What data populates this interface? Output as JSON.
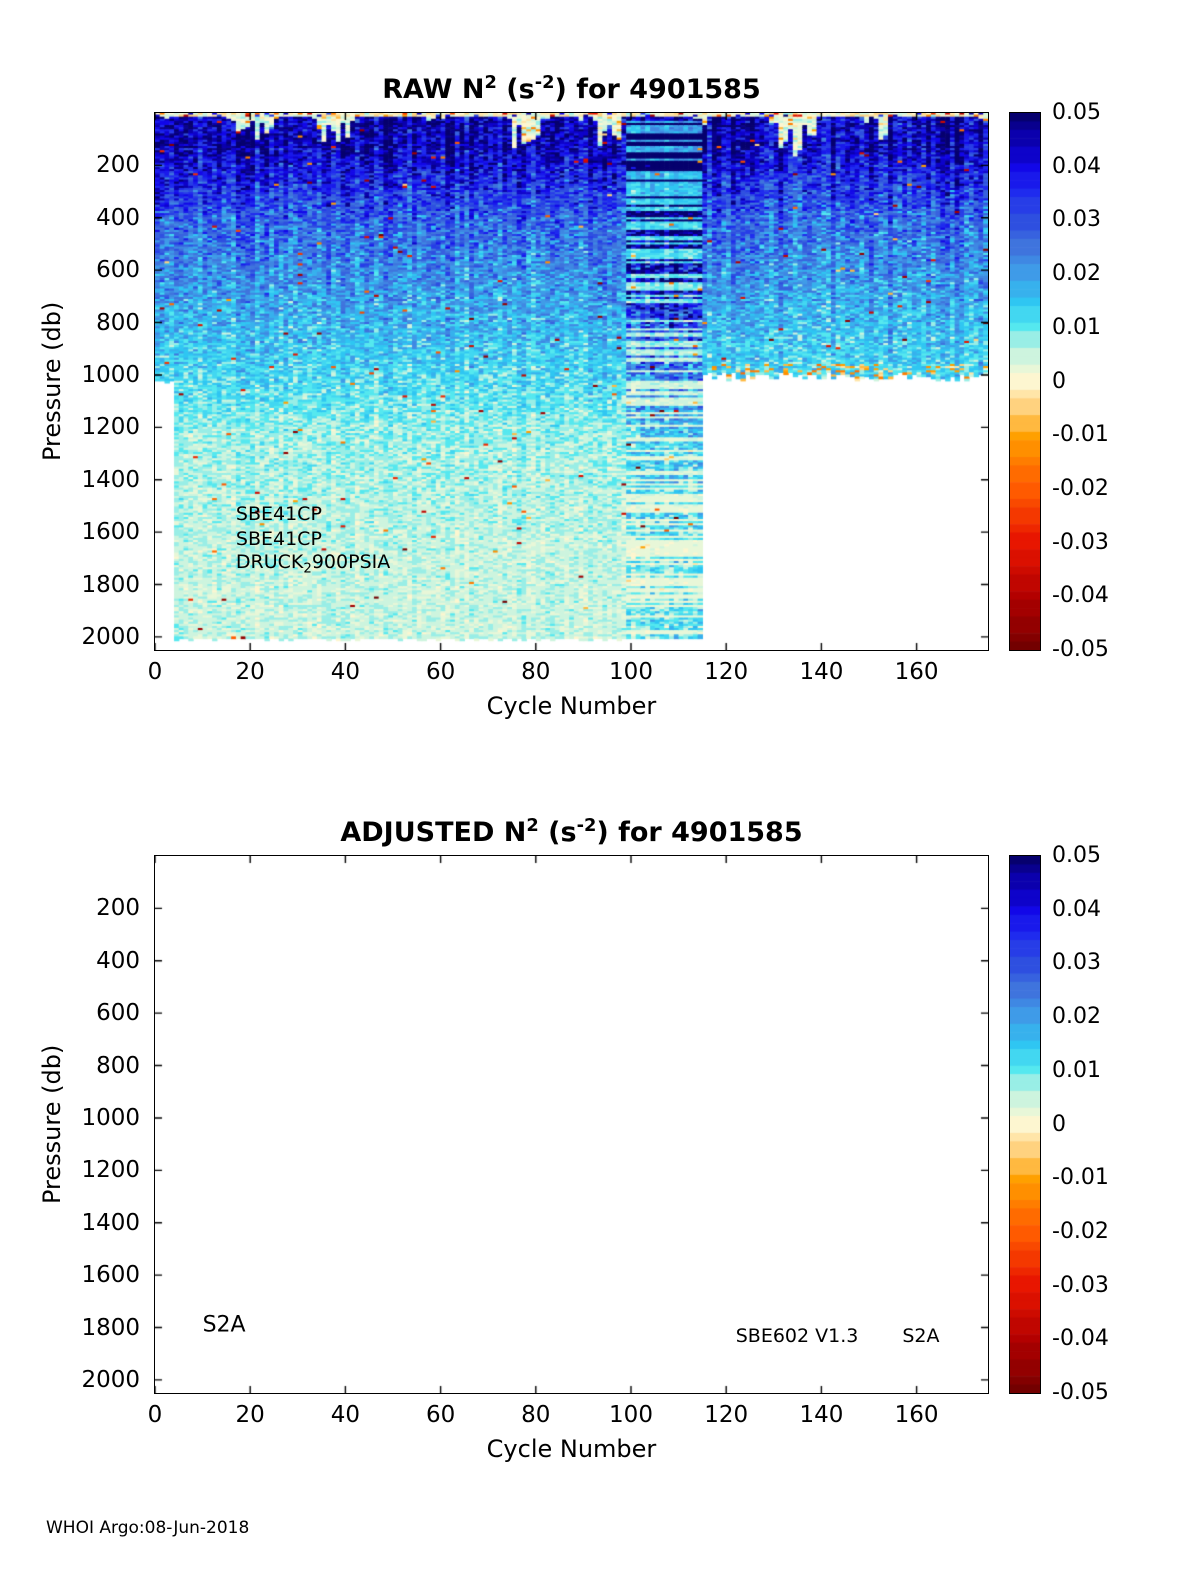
{
  "page": {
    "footer": "WHOI Argo:08-Jun-2018"
  },
  "chart_data": [
    {
      "type": "heatmap",
      "panel": "raw",
      "title_plain": "RAW N^2 (s^-2) for 4901585",
      "title_parts": {
        "pre": "RAW N",
        "sup1": "2",
        "mid": " (s",
        "sup2": "-2",
        "post": ") for 4901585"
      },
      "xlabel": "Cycle Number",
      "ylabel": "Pressure (db)",
      "x_range": [
        0,
        175
      ],
      "y_range": [
        0,
        2050
      ],
      "y_inverted": true,
      "x_ticks": [
        0,
        20,
        40,
        60,
        80,
        100,
        120,
        140,
        160
      ],
      "y_ticks": [
        200,
        400,
        600,
        800,
        1000,
        1200,
        1400,
        1600,
        1800,
        2000
      ],
      "grid": false,
      "clim": [
        -0.05,
        0.05
      ],
      "colorbar": {
        "position": "right",
        "ticks": [
          0.05,
          0.04,
          0.03,
          0.02,
          0.01,
          0,
          -0.01,
          -0.02,
          -0.03,
          -0.04,
          -0.05
        ]
      },
      "colormap_stops": [
        [
          -0.05,
          "#730000"
        ],
        [
          -0.04,
          "#b30000"
        ],
        [
          -0.03,
          "#e81600"
        ],
        [
          -0.02,
          "#ff5a00"
        ],
        [
          -0.01,
          "#ffa000"
        ],
        [
          -0.005,
          "#ffd27f"
        ],
        [
          -0.001,
          "#fff0c0"
        ],
        [
          0.0,
          "#fdf6d0"
        ],
        [
          0.003,
          "#e4f7da"
        ],
        [
          0.006,
          "#c2f2e0"
        ],
        [
          0.01,
          "#55e8ef"
        ],
        [
          0.015,
          "#2fc6f2"
        ],
        [
          0.02,
          "#3f9be8"
        ],
        [
          0.025,
          "#3f74dd"
        ],
        [
          0.03,
          "#2e4fe0"
        ],
        [
          0.035,
          "#1f2bee"
        ],
        [
          0.04,
          "#1207e8"
        ],
        [
          0.045,
          "#0b00ad"
        ],
        [
          0.05,
          "#06006e"
        ]
      ],
      "data_summary": {
        "description": "Noisy N^2 section vs cycle number (1-175) and pressure (0-2010 db). Exact per-pixel values unreadable; depth-band statistics read from the color scale.",
        "bands": [
          {
            "p_min": 0,
            "p_max": 14,
            "mean": 0.0,
            "spread": 0.006,
            "note": "surface cream/tan speckle row with scattered red negatives"
          },
          {
            "p_min": 14,
            "p_max": 240,
            "mean": 0.043,
            "spread": 0.01,
            "note": "dark-blue N^2 maximum; wavy cream low-N^2 surface patches reaching ~130 db"
          },
          {
            "p_min": 240,
            "p_max": 600,
            "mean": 0.026,
            "spread": 0.009
          },
          {
            "p_min": 600,
            "p_max": 1000,
            "mean": 0.016,
            "spread": 0.007
          },
          {
            "p_min": 1000,
            "p_max": 1450,
            "mean": 0.007,
            "spread": 0.004
          },
          {
            "p_min": 1450,
            "p_max": 2010,
            "mean": 0.005,
            "spread": 0.003
          }
        ],
        "features": {
          "striped_band_cycles": [
            100,
            115
          ],
          "no_data_right": {
            "cycle_min": 116,
            "below_pressure": 1000
          },
          "no_data_left": {
            "cycle_max": 4,
            "below_pressure": 1020
          },
          "negative_speckle_fraction": 0.006
        }
      },
      "annotations": [
        {
          "x": 17,
          "y": 1535,
          "parts": [
            {
              "t": "SBE41CP"
            }
          ]
        },
        {
          "x": 17,
          "y": 1630,
          "parts": [
            {
              "t": "SBE41CP"
            }
          ]
        },
        {
          "x": 17,
          "y": 1725,
          "parts": [
            {
              "t": "DRUCK"
            },
            {
              "t": "2",
              "sub": true
            },
            {
              "t": "900PSIA"
            }
          ]
        }
      ]
    },
    {
      "type": "heatmap",
      "panel": "adjusted",
      "title_plain": "ADJUSTED N^2 (s^-2) for 4901585",
      "title_parts": {
        "pre": "ADJUSTED N",
        "sup1": "2",
        "mid": " (s",
        "sup2": "-2",
        "post": ") for 4901585"
      },
      "xlabel": "Cycle Number",
      "ylabel": "Pressure (db)",
      "x_range": [
        0,
        175
      ],
      "y_range": [
        0,
        2050
      ],
      "y_inverted": true,
      "x_ticks": [
        0,
        20,
        40,
        60,
        80,
        100,
        120,
        140,
        160
      ],
      "y_ticks": [
        200,
        400,
        600,
        800,
        1000,
        1200,
        1400,
        1600,
        1800,
        2000
      ],
      "grid": false,
      "clim": [
        -0.05,
        0.05
      ],
      "colorbar": {
        "position": "right",
        "ticks": [
          0.05,
          0.04,
          0.03,
          0.02,
          0.01,
          0,
          -0.01,
          -0.02,
          -0.03,
          -0.04,
          -0.05
        ]
      },
      "data_summary": {
        "description": "No adjusted data plotted - blank white axes.",
        "bands": [],
        "features": {}
      },
      "annotations": [
        {
          "x": 10,
          "y": 1795,
          "parts": [
            {
              "t": "S2A"
            }
          ],
          "size": 22
        },
        {
          "x": 122,
          "y": 1835,
          "parts": [
            {
              "t": "SBE602 V1.3"
            }
          ]
        },
        {
          "x": 157,
          "y": 1835,
          "parts": [
            {
              "t": "S2A"
            }
          ]
        }
      ]
    }
  ]
}
